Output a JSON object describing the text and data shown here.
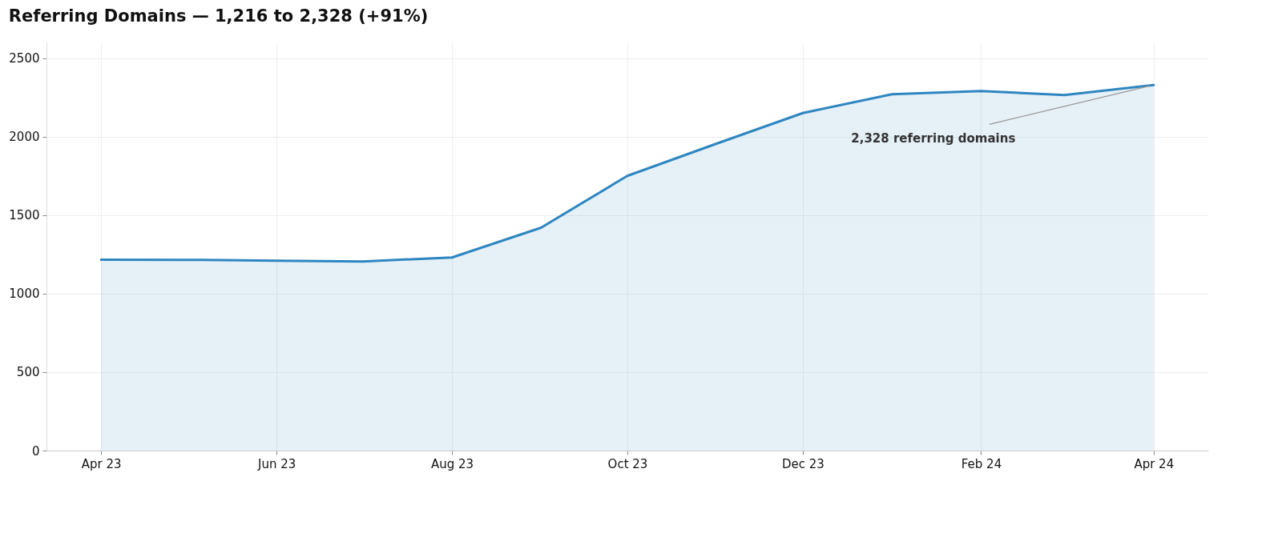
{
  "chart_data": {
    "type": "area",
    "title": "Referring Domains — 1,216 to 2,328 (+91%)",
    "x": [
      "2023-04-01",
      "2023-05-01",
      "2023-06-01",
      "2023-07-01",
      "2023-08-01",
      "2023-09-01",
      "2023-10-01",
      "2023-11-01",
      "2023-12-01",
      "2024-01-01",
      "2024-02-01",
      "2024-03-01",
      "2024-04-01"
    ],
    "series": [
      {
        "color": "#2e86c1",
        "values": [
          1216,
          1215,
          1210,
          1205,
          1230,
          1420,
          1750,
          1955,
          2150,
          2270,
          2290,
          2265,
          2328
        ]
      }
    ],
    "xlim": [
      "2023-03-13",
      "2024-04-20"
    ],
    "xticks": [
      {
        "value": "2023-04-01",
        "label": "Apr 23"
      },
      {
        "value": "2023-06-01",
        "label": "Jun 23"
      },
      {
        "value": "2023-08-01",
        "label": "Aug 23"
      },
      {
        "value": "2023-10-01",
        "label": "Oct 23"
      },
      {
        "value": "2023-12-01",
        "label": "Dec 23"
      },
      {
        "value": "2024-02-01",
        "label": "Feb 24"
      },
      {
        "value": "2024-04-01",
        "label": "Apr 24"
      }
    ],
    "ylim": [
      0,
      2600
    ],
    "yticks": [
      0,
      500,
      1000,
      1500,
      2000,
      2500
    ],
    "grid": true,
    "annotations": [
      {
        "text": "2,328 referring domains",
        "x": "2024-04-01",
        "y": 2328
      }
    ]
  }
}
